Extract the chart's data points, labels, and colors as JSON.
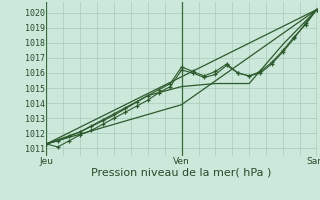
{
  "title": "",
  "xlabel": "Pression niveau de la mer( hPa )",
  "bg_color": "#cbe8da",
  "grid_color": "#a8ccbb",
  "line_color": "#2d5a2d",
  "ylim": [
    1010.5,
    1020.7
  ],
  "xlim": [
    0,
    48
  ],
  "yticks": [
    1011,
    1012,
    1013,
    1014,
    1015,
    1016,
    1017,
    1018,
    1019,
    1020
  ],
  "xtick_positions": [
    0,
    24,
    48
  ],
  "xtick_labels": [
    "Jeu",
    "Ven",
    "Sam"
  ],
  "line1_x": [
    0,
    2,
    4,
    6,
    8,
    10,
    12,
    14,
    16,
    18,
    20,
    22,
    24,
    26,
    28,
    30,
    32,
    34,
    36,
    38,
    40,
    42,
    44,
    46,
    48
  ],
  "line1_y": [
    1011.3,
    1011.1,
    1011.5,
    1011.9,
    1012.2,
    1012.6,
    1013.0,
    1013.4,
    1013.8,
    1014.2,
    1014.7,
    1015.1,
    1016.2,
    1016.0,
    1015.7,
    1015.9,
    1016.5,
    1016.0,
    1015.8,
    1016.0,
    1016.6,
    1017.4,
    1018.3,
    1019.3,
    1020.2
  ],
  "line2_x": [
    0,
    2,
    4,
    6,
    8,
    10,
    12,
    14,
    16,
    18,
    20,
    22,
    24,
    26,
    28,
    30,
    32,
    34,
    36,
    38,
    40,
    42,
    44,
    46,
    48
  ],
  "line2_y": [
    1011.3,
    1011.5,
    1011.8,
    1012.1,
    1012.5,
    1012.9,
    1013.3,
    1013.7,
    1014.1,
    1014.5,
    1014.9,
    1015.3,
    1016.4,
    1016.1,
    1015.8,
    1016.1,
    1016.6,
    1016.0,
    1015.8,
    1016.1,
    1016.7,
    1017.5,
    1018.4,
    1019.2,
    1020.2
  ],
  "line3_x": [
    0,
    6,
    12,
    18,
    24,
    30,
    36,
    42,
    48
  ],
  "line3_y": [
    1011.3,
    1012.1,
    1013.2,
    1014.5,
    1015.1,
    1015.3,
    1015.3,
    1017.9,
    1020.2
  ],
  "line4_x": [
    0,
    48
  ],
  "line4_y": [
    1011.3,
    1020.2
  ],
  "line5_x": [
    0,
    24,
    48
  ],
  "line5_y": [
    1011.3,
    1013.9,
    1020.2
  ],
  "vline_color": "#3a6b3a",
  "xlabel_fontsize": 8,
  "tick_fontsize": 6,
  "xlabel_color": "#2a4a2a",
  "tick_color": "#2a4a2a"
}
